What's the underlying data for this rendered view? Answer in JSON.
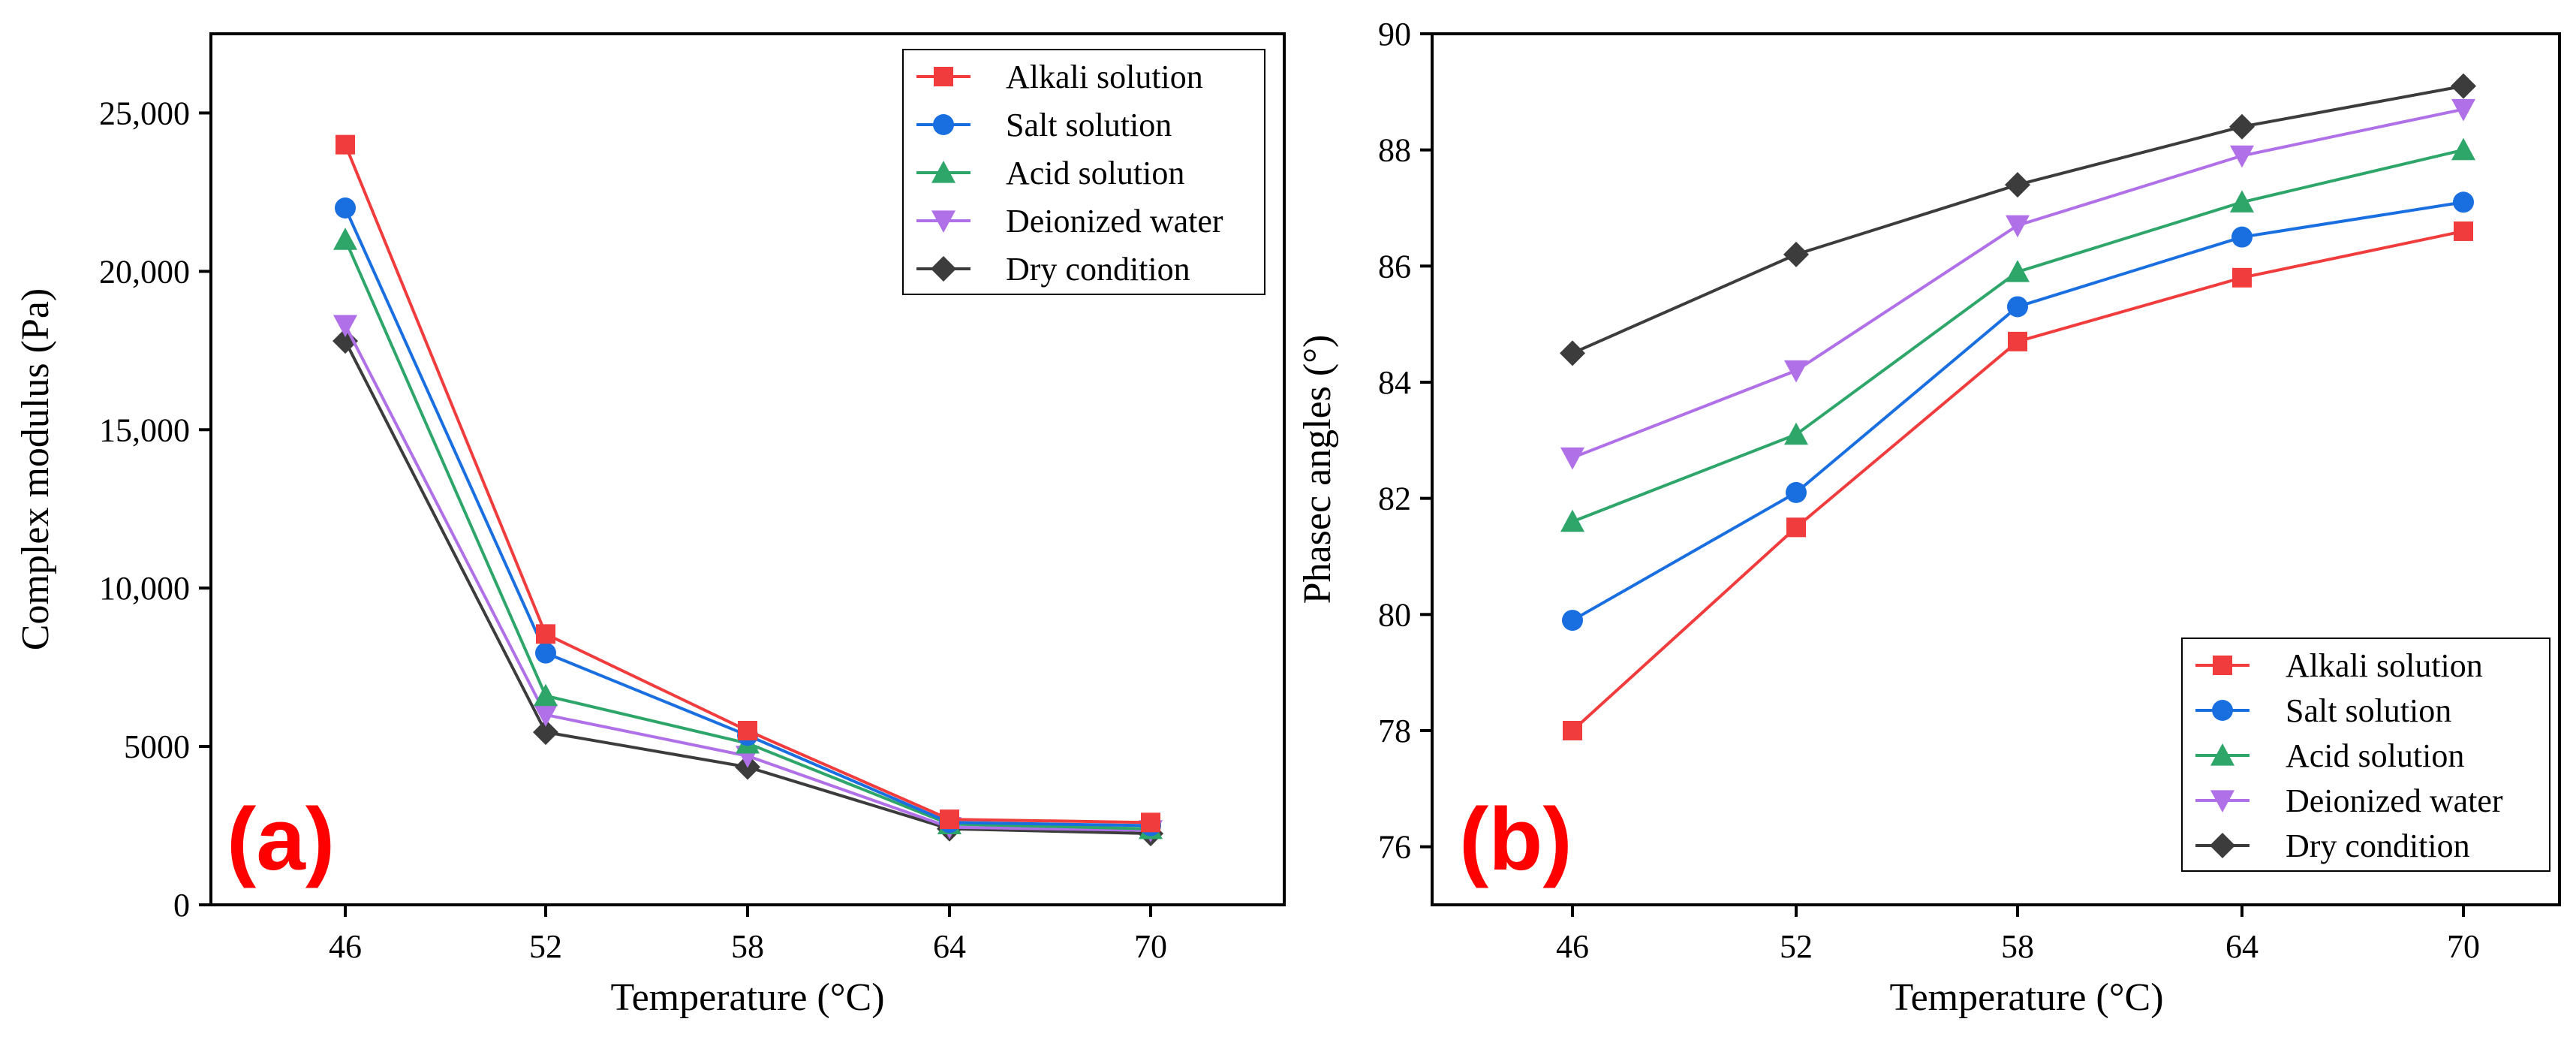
{
  "chart_data": [
    {
      "type": "line",
      "panel_label": "(a)",
      "xlabel": "Temperature (°C)",
      "ylabel": "Complex modulus (Pa)",
      "categories": [
        "46",
        "52",
        "58",
        "64",
        "70"
      ],
      "ylim": [
        0,
        27500
      ],
      "yticks": [
        0,
        5000,
        10000,
        15000,
        20000,
        25000
      ],
      "ytick_labels": [
        "0",
        "5000",
        "10,000",
        "15,000",
        "20,000",
        "25,000"
      ],
      "legend_position": "top-right",
      "series": [
        {
          "name": "Alkali solution",
          "marker": "square",
          "color": "#f03c3c",
          "values": [
            24000,
            8550,
            5500,
            2700,
            2600
          ]
        },
        {
          "name": "Salt solution",
          "marker": "circle",
          "color": "#1a6fe0",
          "values": [
            22000,
            7950,
            5350,
            2600,
            2500
          ]
        },
        {
          "name": "Acid solution",
          "marker": "triangle-up",
          "color": "#2ea66a",
          "values": [
            21000,
            6600,
            5100,
            2550,
            2400
          ]
        },
        {
          "name": "Deionized water",
          "marker": "triangle-down",
          "color": "#b070e8",
          "values": [
            18300,
            6000,
            4700,
            2450,
            2350
          ]
        },
        {
          "name": "Dry condition",
          "marker": "diamond",
          "color": "#3c3c3c",
          "values": [
            17800,
            5450,
            4350,
            2400,
            2250
          ]
        }
      ]
    },
    {
      "type": "line",
      "panel_label": "(b)",
      "xlabel": "Temperature (°C)",
      "ylabel": "Phasec angles (°)",
      "categories": [
        "46",
        "52",
        "58",
        "64",
        "70"
      ],
      "ylim": [
        75,
        90
      ],
      "yticks": [
        76,
        78,
        80,
        82,
        84,
        86,
        88,
        90
      ],
      "ytick_labels": [
        "76",
        "78",
        "80",
        "82",
        "84",
        "86",
        "88",
        "90"
      ],
      "legend_position": "bottom-right",
      "series": [
        {
          "name": "Alkali solution",
          "marker": "square",
          "color": "#f03c3c",
          "values": [
            78.0,
            81.5,
            84.7,
            85.8,
            86.6
          ]
        },
        {
          "name": "Salt solution",
          "marker": "circle",
          "color": "#1a6fe0",
          "values": [
            79.9,
            82.1,
            85.3,
            86.5,
            87.1
          ]
        },
        {
          "name": "Acid solution",
          "marker": "triangle-up",
          "color": "#2ea66a",
          "values": [
            81.6,
            83.1,
            85.9,
            87.1,
            88.0
          ]
        },
        {
          "name": "Deionized water",
          "marker": "triangle-down",
          "color": "#b070e8",
          "values": [
            82.7,
            84.2,
            86.7,
            87.9,
            88.7
          ]
        },
        {
          "name": "Dry condition",
          "marker": "diamond",
          "color": "#3c3c3c",
          "values": [
            84.5,
            86.2,
            87.4,
            88.4,
            89.1
          ]
        }
      ]
    }
  ]
}
